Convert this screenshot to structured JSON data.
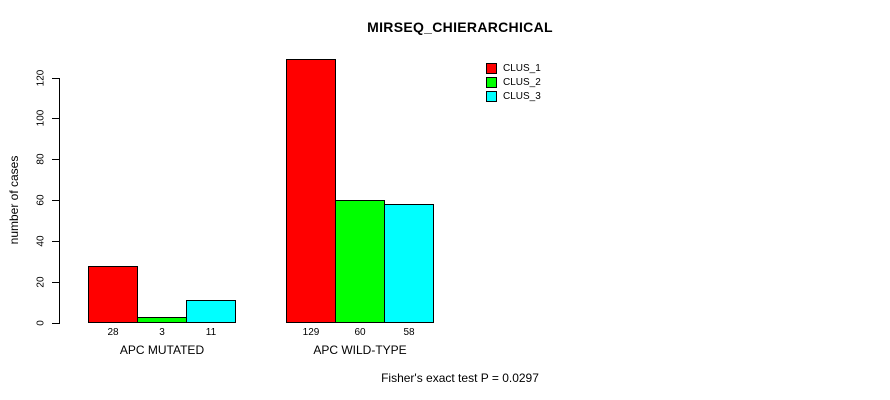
{
  "chart_data": {
    "type": "bar",
    "title": "MIRSEQ_CHIERARCHICAL",
    "xlabel": "",
    "ylabel": "number of cases",
    "categories": [
      "APC MUTATED",
      "APC WILD-TYPE"
    ],
    "series": [
      {
        "name": "CLUS_1",
        "color": "#FF0000",
        "values": [
          28,
          129
        ]
      },
      {
        "name": "CLUS_2",
        "color": "#00FF00",
        "values": [
          3,
          60
        ]
      },
      {
        "name": "CLUS_3",
        "color": "#00FFFF",
        "values": [
          11,
          58
        ]
      }
    ],
    "value_labels_under_bars": [
      [
        28,
        3,
        11
      ],
      [
        129,
        60,
        58
      ]
    ],
    "yticks": [
      0,
      20,
      40,
      60,
      80,
      100,
      120
    ],
    "ylim": [
      0,
      120
    ],
    "grid": false,
    "bar_border_color": "#000000",
    "legend_position": "top-right",
    "legend_entries": [
      "CLUS_1",
      "CLUS_2",
      "CLUS_3"
    ],
    "annotation": "Fisher's exact test P = 0.0297"
  }
}
